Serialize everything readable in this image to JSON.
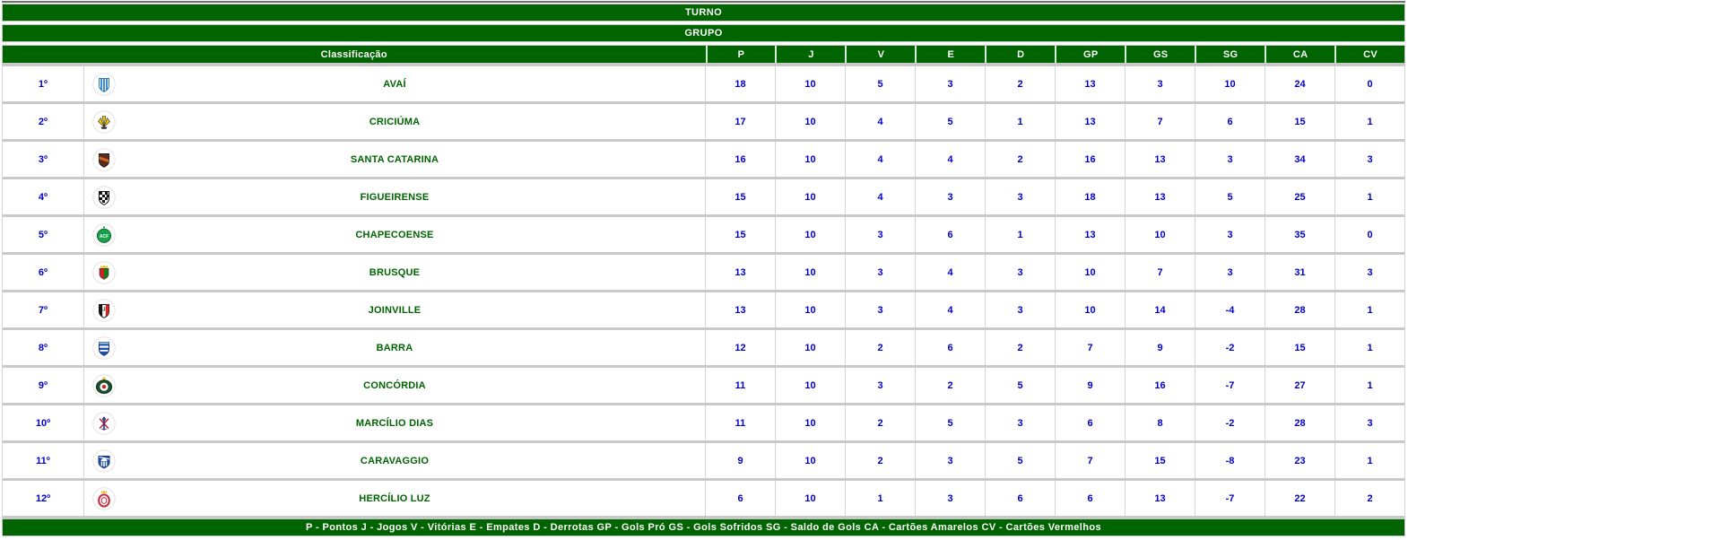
{
  "colors": {
    "header_green": "#006400",
    "value_blue": "#0000cc",
    "team_name_green": "#006400",
    "row_separator": "#c9c9c9",
    "header_text": "#ffffff"
  },
  "header": {
    "turno": "TURNO",
    "grupo": "GRUPO"
  },
  "table": {
    "classification_header": "Classificação",
    "stat_columns": [
      "P",
      "J",
      "V",
      "E",
      "D",
      "GP",
      "GS",
      "SG",
      "CA",
      "CV"
    ],
    "rows": [
      {
        "position": "1º",
        "team": "AVAÍ",
        "crest": {
          "icon": "avai-crest-icon",
          "type": "avai",
          "colors": [
            "#1f77c4",
            "#ffffff"
          ]
        },
        "stats": [
          18,
          10,
          5,
          3,
          2,
          13,
          3,
          10,
          24,
          0
        ]
      },
      {
        "position": "2º",
        "team": "CRICIÚMA",
        "crest": {
          "icon": "criciuma-crest-icon",
          "type": "criciuma",
          "colors": [
            "#f0c400",
            "#2b2b2b"
          ]
        },
        "stats": [
          17,
          10,
          4,
          5,
          1,
          13,
          7,
          6,
          15,
          1
        ]
      },
      {
        "position": "3º",
        "team": "SANTA CATARINA",
        "crest": {
          "icon": "santa-catarina-crest-icon",
          "type": "santacatarina",
          "colors": [
            "#5d2b1d",
            "#d2691e",
            "#1e1e1e"
          ]
        },
        "stats": [
          16,
          10,
          4,
          4,
          2,
          16,
          13,
          3,
          34,
          3
        ]
      },
      {
        "position": "4º",
        "team": "FIGUEIRENSE",
        "crest": {
          "icon": "figueirense-crest-icon",
          "type": "figueirense",
          "colors": [
            "#111111"
          ]
        },
        "stats": [
          15,
          10,
          4,
          3,
          3,
          18,
          13,
          5,
          25,
          1
        ]
      },
      {
        "position": "5º",
        "team": "CHAPECOENSE",
        "crest": {
          "icon": "chapecoense-crest-icon",
          "type": "chapecoense",
          "colors": [
            "#17a14a",
            "#0c6b30"
          ]
        },
        "stats": [
          15,
          10,
          3,
          6,
          1,
          13,
          10,
          3,
          35,
          0
        ]
      },
      {
        "position": "6º",
        "team": "BRUSQUE",
        "crest": {
          "icon": "brusque-crest-icon",
          "type": "brusque",
          "colors": [
            "#cc2222",
            "#1a7a1a",
            "#e8b800"
          ]
        },
        "stats": [
          13,
          10,
          3,
          4,
          3,
          10,
          7,
          3,
          31,
          3
        ]
      },
      {
        "position": "7º",
        "team": "JOINVILLE",
        "crest": {
          "icon": "joinville-crest-icon",
          "type": "joinville",
          "colors": [
            "#d02626",
            "#151515"
          ]
        },
        "stats": [
          13,
          10,
          3,
          4,
          3,
          10,
          14,
          -4,
          28,
          1
        ]
      },
      {
        "position": "8º",
        "team": "BARRA",
        "crest": {
          "icon": "barra-crest-icon",
          "type": "barra",
          "colors": [
            "#1d4fa8",
            "#9fc1e8"
          ]
        },
        "stats": [
          12,
          10,
          2,
          6,
          2,
          7,
          9,
          -2,
          15,
          1
        ]
      },
      {
        "position": "9º",
        "team": "CONCÓRDIA",
        "crest": {
          "icon": "concordia-crest-icon",
          "type": "concordia",
          "colors": [
            "#1b4d2e",
            "#cc2222",
            "#e8b800"
          ]
        },
        "stats": [
          11,
          10,
          3,
          2,
          5,
          9,
          16,
          -7,
          27,
          1
        ]
      },
      {
        "position": "10º",
        "team": "MARCÍLIO DIAS",
        "crest": {
          "icon": "marcilio-dias-crest-icon",
          "type": "marciliodias",
          "colors": [
            "#c2293a",
            "#22387a"
          ]
        },
        "stats": [
          11,
          10,
          2,
          5,
          3,
          6,
          8,
          -2,
          28,
          3
        ]
      },
      {
        "position": "11º",
        "team": "CARAVAGGIO",
        "crest": {
          "icon": "caravaggio-crest-icon",
          "type": "caravaggio",
          "colors": [
            "#1d4fa8"
          ]
        },
        "stats": [
          9,
          10,
          2,
          3,
          5,
          7,
          15,
          -8,
          23,
          1
        ]
      },
      {
        "position": "12º",
        "team": "HERCÍLIO LUZ",
        "crest": {
          "icon": "hercilio-luz-crest-icon",
          "type": "hercilioluz",
          "colors": [
            "#c2293a",
            "#e8b800"
          ]
        },
        "stats": [
          6,
          10,
          1,
          3,
          6,
          6,
          13,
          -7,
          22,
          2
        ]
      }
    ]
  },
  "footer": {
    "legend": "P - Pontos J - Jogos V - Vitórias E - Empates D - Derrotas GP - Gols Pró GS - Gols Sofridos SG - Saldo de Gols CA - Cartões Amarelos CV - Cartões Vermelhos"
  }
}
